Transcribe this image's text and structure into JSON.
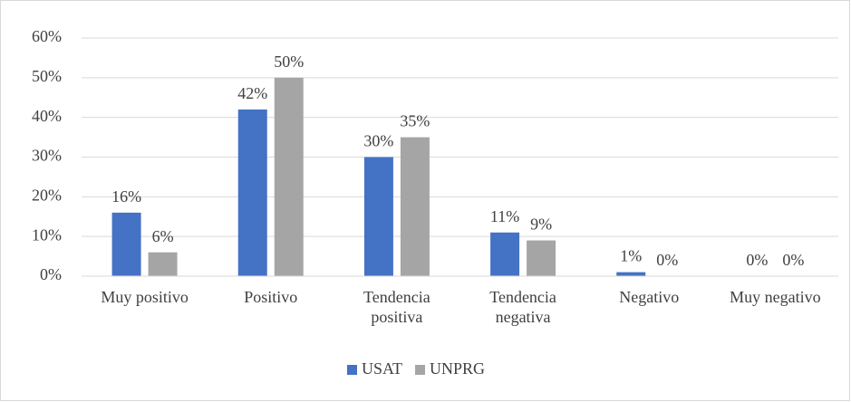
{
  "chart_data": {
    "type": "bar",
    "categories": [
      "Muy positivo",
      "Positivo",
      "Tendencia positiva",
      "Tendencia negativa",
      "Negativo",
      "Muy negativo"
    ],
    "series": [
      {
        "name": "USAT",
        "color": "#4472c4",
        "values": [
          16,
          42,
          30,
          11,
          1,
          0
        ],
        "value_labels": [
          "16%",
          "42%",
          "30%",
          "11%",
          "1%",
          "0%"
        ]
      },
      {
        "name": "UNPRG",
        "color": "#a5a5a5",
        "values": [
          6,
          50,
          35,
          9,
          0,
          0
        ],
        "value_labels": [
          "6%",
          "50%",
          "35%",
          "9%",
          "0%",
          "0%"
        ]
      }
    ],
    "ylim": [
      0,
      60
    ],
    "yticks": [
      {
        "value": 0,
        "label": "0%"
      },
      {
        "value": 10,
        "label": "10%"
      },
      {
        "value": 20,
        "label": "20%"
      },
      {
        "value": 30,
        "label": "30%"
      },
      {
        "value": 40,
        "label": "40%"
      },
      {
        "value": 50,
        "label": "50%"
      },
      {
        "value": 60,
        "label": "60%"
      }
    ],
    "grid": true,
    "legend": "bottom"
  }
}
